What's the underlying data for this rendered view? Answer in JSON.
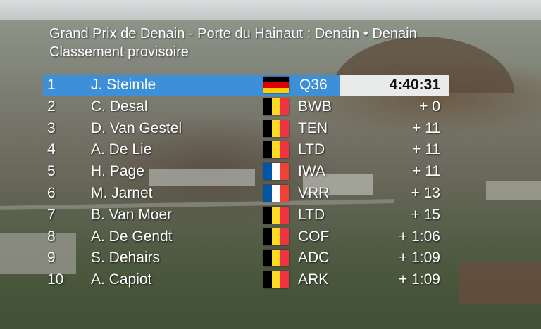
{
  "header": {
    "line1": "Grand Prix de Denain - Porte du Hainaut : Denain • Denain",
    "line2": "Classement provisoire"
  },
  "colors": {
    "leader_band": "#3d8fd8",
    "leader_time_band": "#e9eaea",
    "text": "#ffffff",
    "be_black": "#000000",
    "be_yellow": "#fdda24",
    "be_red": "#ef3340",
    "de_black": "#000000",
    "de_red": "#dd0000",
    "de_gold": "#ffce00",
    "fr_blue": "#0055a4",
    "fr_white": "#ffffff",
    "fr_red": "#ef4135"
  },
  "standings": [
    {
      "position": "1",
      "name": "J. Steimle",
      "flag": "germany-flag-icon",
      "team": "Q36",
      "gap": "4:40:31"
    },
    {
      "position": "2",
      "name": "C. Desal",
      "flag": "belgium-flag-icon",
      "team": "BWB",
      "gap": "+  0"
    },
    {
      "position": "3",
      "name": "D. Van Gestel",
      "flag": "belgium-flag-icon",
      "team": "TEN",
      "gap": "+ 11"
    },
    {
      "position": "4",
      "name": "A. De Lie",
      "flag": "belgium-flag-icon",
      "team": "LTD",
      "gap": "+ 11"
    },
    {
      "position": "5",
      "name": "H. Page",
      "flag": "france-flag-icon",
      "team": "IWA",
      "gap": "+ 11"
    },
    {
      "position": "6",
      "name": "M. Jarnet",
      "flag": "france-flag-icon",
      "team": "VRR",
      "gap": "+ 13"
    },
    {
      "position": "7",
      "name": "B. Van Moer",
      "flag": "belgium-flag-icon",
      "team": "LTD",
      "gap": "+ 15"
    },
    {
      "position": "8",
      "name": "A. De Gendt",
      "flag": "belgium-flag-icon",
      "team": "COF",
      "gap": "+ 1:06"
    },
    {
      "position": "9",
      "name": "S. Dehairs",
      "flag": "belgium-flag-icon",
      "team": "ADC",
      "gap": "+ 1:09"
    },
    {
      "position": "10",
      "name": "A. Capiot",
      "flag": "belgium-flag-icon",
      "team": "ARK",
      "gap": "+ 1:09"
    }
  ]
}
